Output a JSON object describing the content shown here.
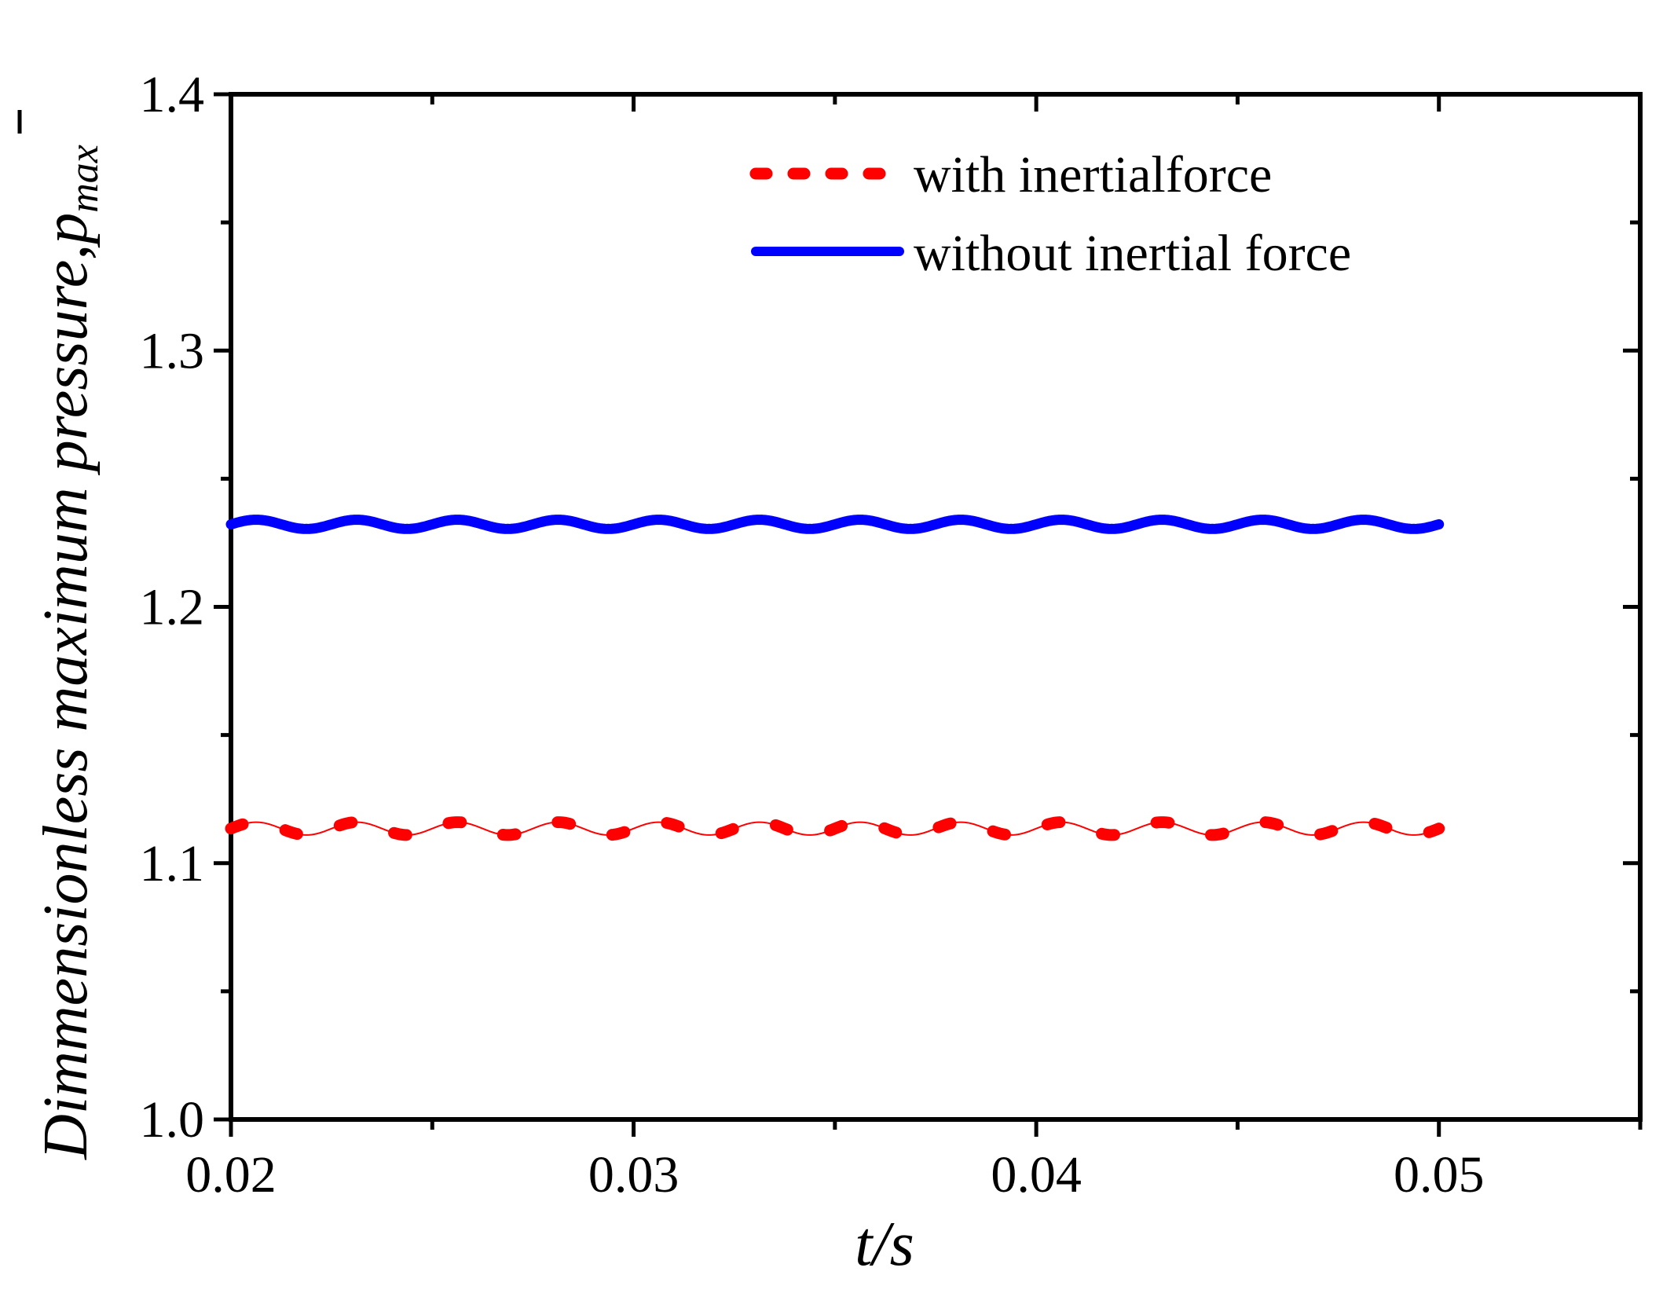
{
  "chart_data": {
    "type": "line",
    "title": "",
    "xlabel": "t/s",
    "ylabel_main": "Dimmensionless maximum pressure,",
    "ylabel_symbol": "p",
    "ylabel_subscript": "max",
    "xlim": [
      0.02,
      0.055
    ],
    "ylim": [
      1.0,
      1.4
    ],
    "x_ticks": [
      0.02,
      0.03,
      0.04,
      0.05
    ],
    "x_tick_labels": [
      "0.02",
      "0.03",
      "0.04",
      "0.05"
    ],
    "y_ticks": [
      1.0,
      1.1,
      1.2,
      1.3,
      1.4
    ],
    "y_tick_labels": [
      "1.0",
      "1.1",
      "1.2",
      "1.3",
      "1.4"
    ],
    "grid": false,
    "legend_position": "top-right",
    "series": [
      {
        "name": "with inertialforce",
        "color": "#ff0000",
        "style": "dotted-over-thin-line",
        "x_start": 0.02,
        "x_end": 0.05,
        "mean": 1.1135,
        "amplitude": 0.0025,
        "period": 0.0025,
        "phase": 0.0
      },
      {
        "name": "without inertial force",
        "color": "#0000ff",
        "style": "solid-thick",
        "x_start": 0.02,
        "x_end": 0.05,
        "mean": 1.2322,
        "amplitude": 0.0018,
        "period": 0.0025,
        "phase": 0.0
      }
    ]
  }
}
